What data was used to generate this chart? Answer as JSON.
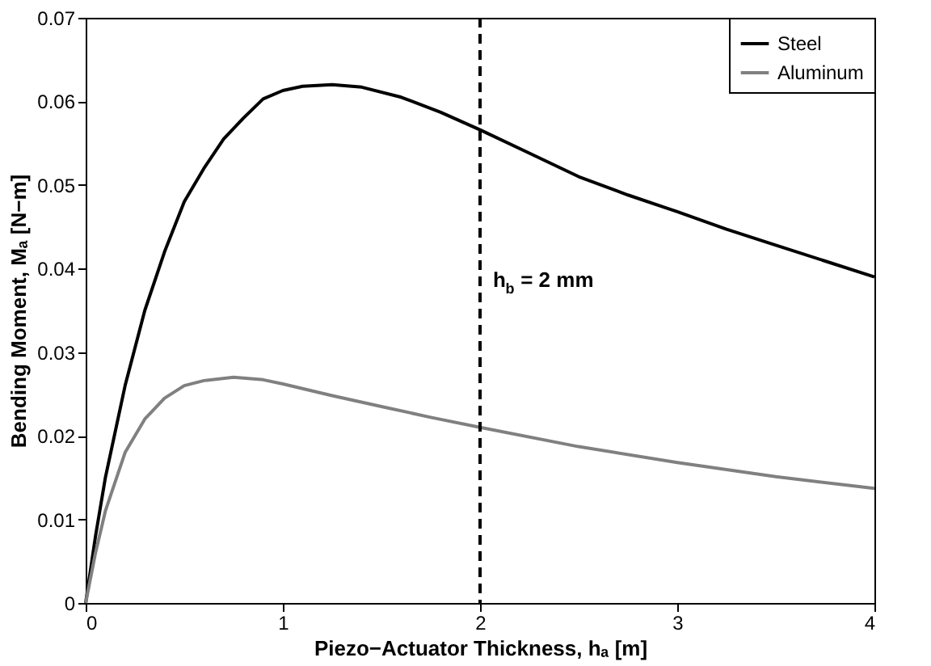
{
  "chart_data": {
    "type": "line",
    "xlabel": "Piezo−Actuator Thickness, hₐ [m]",
    "ylabel": "Bending Moment, Mₐ [N−m]",
    "xlim": [
      0,
      4
    ],
    "ylim": [
      0,
      0.07
    ],
    "xticks": [
      0,
      1,
      2,
      3,
      4
    ],
    "yticks": [
      0,
      0.01,
      0.02,
      0.03,
      0.04,
      0.05,
      0.06,
      0.07
    ],
    "grid": false,
    "legend": "top right",
    "marker": "none",
    "line_style": "solid",
    "ref_lines": [
      {
        "axis": "x",
        "value": 2,
        "label": "h$_{b}$ = 2 mm",
        "color": "#000000",
        "line_style": "dashed"
      }
    ],
    "series": [
      {
        "name": "Steel",
        "color": "#000000",
        "x": [
          0,
          0.05,
          0.1,
          0.2,
          0.3,
          0.4,
          0.5,
          0.6,
          0.7,
          0.8,
          0.9,
          1.0,
          1.1,
          1.25,
          1.4,
          1.6,
          1.8,
          2.0,
          2.25,
          2.5,
          2.75,
          3.0,
          3.25,
          3.5,
          3.75,
          4.0
        ],
        "values": [
          0,
          0.008,
          0.015,
          0.026,
          0.035,
          0.042,
          0.048,
          0.052,
          0.0555,
          0.058,
          0.0603,
          0.0613,
          0.0618,
          0.062,
          0.0617,
          0.0605,
          0.0587,
          0.0566,
          0.0538,
          0.051,
          0.0488,
          0.0468,
          0.0447,
          0.0428,
          0.0409,
          0.039
        ]
      },
      {
        "name": "Aluminum",
        "color": "#808080",
        "x": [
          0,
          0.05,
          0.1,
          0.2,
          0.3,
          0.4,
          0.5,
          0.6,
          0.75,
          0.9,
          1.0,
          1.25,
          1.5,
          1.75,
          2.0,
          2.5,
          3.0,
          3.5,
          4.0
        ],
        "values": [
          0,
          0.006,
          0.011,
          0.018,
          0.022,
          0.0245,
          0.026,
          0.0266,
          0.027,
          0.0267,
          0.0262,
          0.0248,
          0.0235,
          0.0222,
          0.021,
          0.0187,
          0.0168,
          0.0151,
          0.0137
        ]
      }
    ]
  }
}
